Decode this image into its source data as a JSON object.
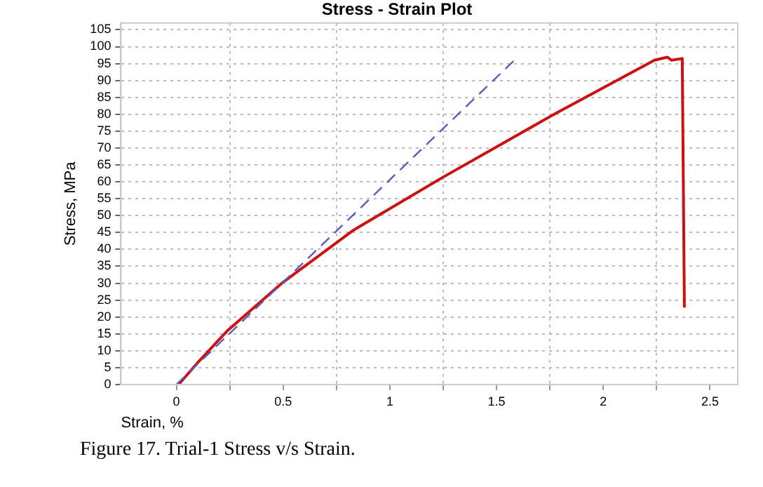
{
  "chart_data": {
    "type": "line",
    "title": "Stress - Strain Plot",
    "xlabel": "Strain, %",
    "ylabel": "Stress, MPa",
    "annotations": [
      "Figure 17. Trial-1 Stress v/s Strain."
    ],
    "xlim": [
      -0.26,
      2.63
    ],
    "ylim": [
      0,
      107
    ],
    "xticks": [
      0,
      {
        "value": 0.25,
        "label": null
      },
      {
        "value": 0.5,
        "label": "0.5"
      },
      {
        "value": 0.75,
        "label": null
      },
      1,
      {
        "value": 1.25,
        "label": null
      },
      1.5,
      {
        "value": 1.75,
        "label": null
      },
      2,
      {
        "value": 2.25,
        "label": null
      },
      2.5
    ],
    "yticks": [
      0,
      5,
      10,
      15,
      20,
      25,
      30,
      35,
      40,
      45,
      50,
      55,
      60,
      65,
      70,
      75,
      80,
      85,
      90,
      95,
      100,
      105
    ],
    "grid": true,
    "marker": "none",
    "legend": false,
    "series": [
      {
        "color": "#5a5ac0",
        "line_style": "dashed",
        "x": [
          0,
          1.6
        ],
        "values": [
          0,
          97
        ]
      },
      {
        "color": "#cc1111",
        "line_style": "solid",
        "x": [
          0.01,
          0.1,
          0.24,
          0.5,
          0.83,
          1.25,
          1.77,
          2.24,
          2.3,
          2.32,
          2.37,
          2.38
        ],
        "values": [
          0,
          6.5,
          16,
          30.3,
          45.7,
          61.4,
          80,
          96,
          96.9,
          96,
          96.5,
          22.8
        ]
      }
    ]
  }
}
